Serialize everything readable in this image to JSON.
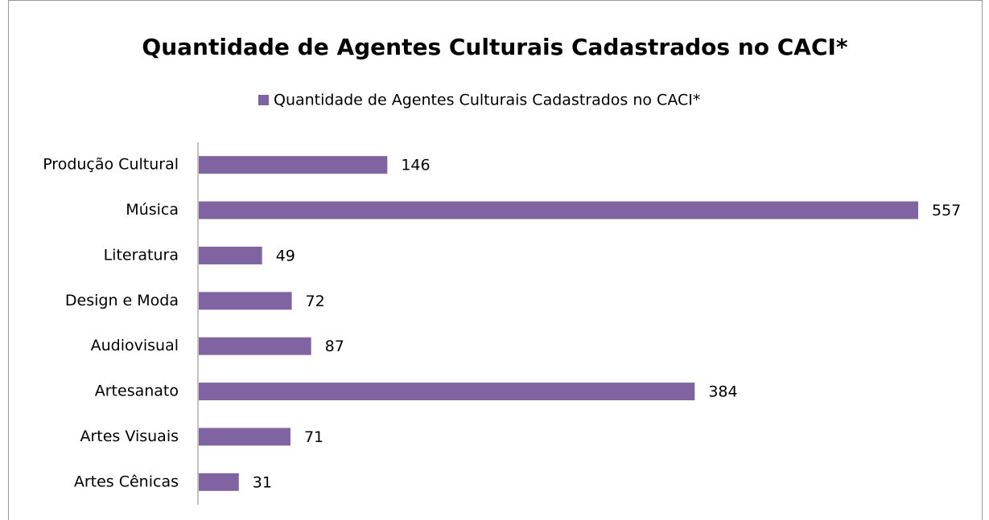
{
  "chart_data": {
    "type": "bar",
    "orientation": "horizontal",
    "title": "Quantidade de Agentes Culturais Cadastrados no CACI*",
    "categories": [
      "Produção Cultural",
      "Música",
      "Literatura",
      "Design e Moda",
      "Audiovisual",
      "Artesanato",
      "Artes Visuais",
      "Artes Cênicas"
    ],
    "series": [
      {
        "name": "Quantidade de Agentes Culturais Cadastrados no CACI*",
        "color": "#8064a2",
        "values": [
          146,
          557,
          49,
          72,
          87,
          384,
          71,
          31
        ]
      }
    ],
    "legend": "top",
    "data_labels": true
  }
}
